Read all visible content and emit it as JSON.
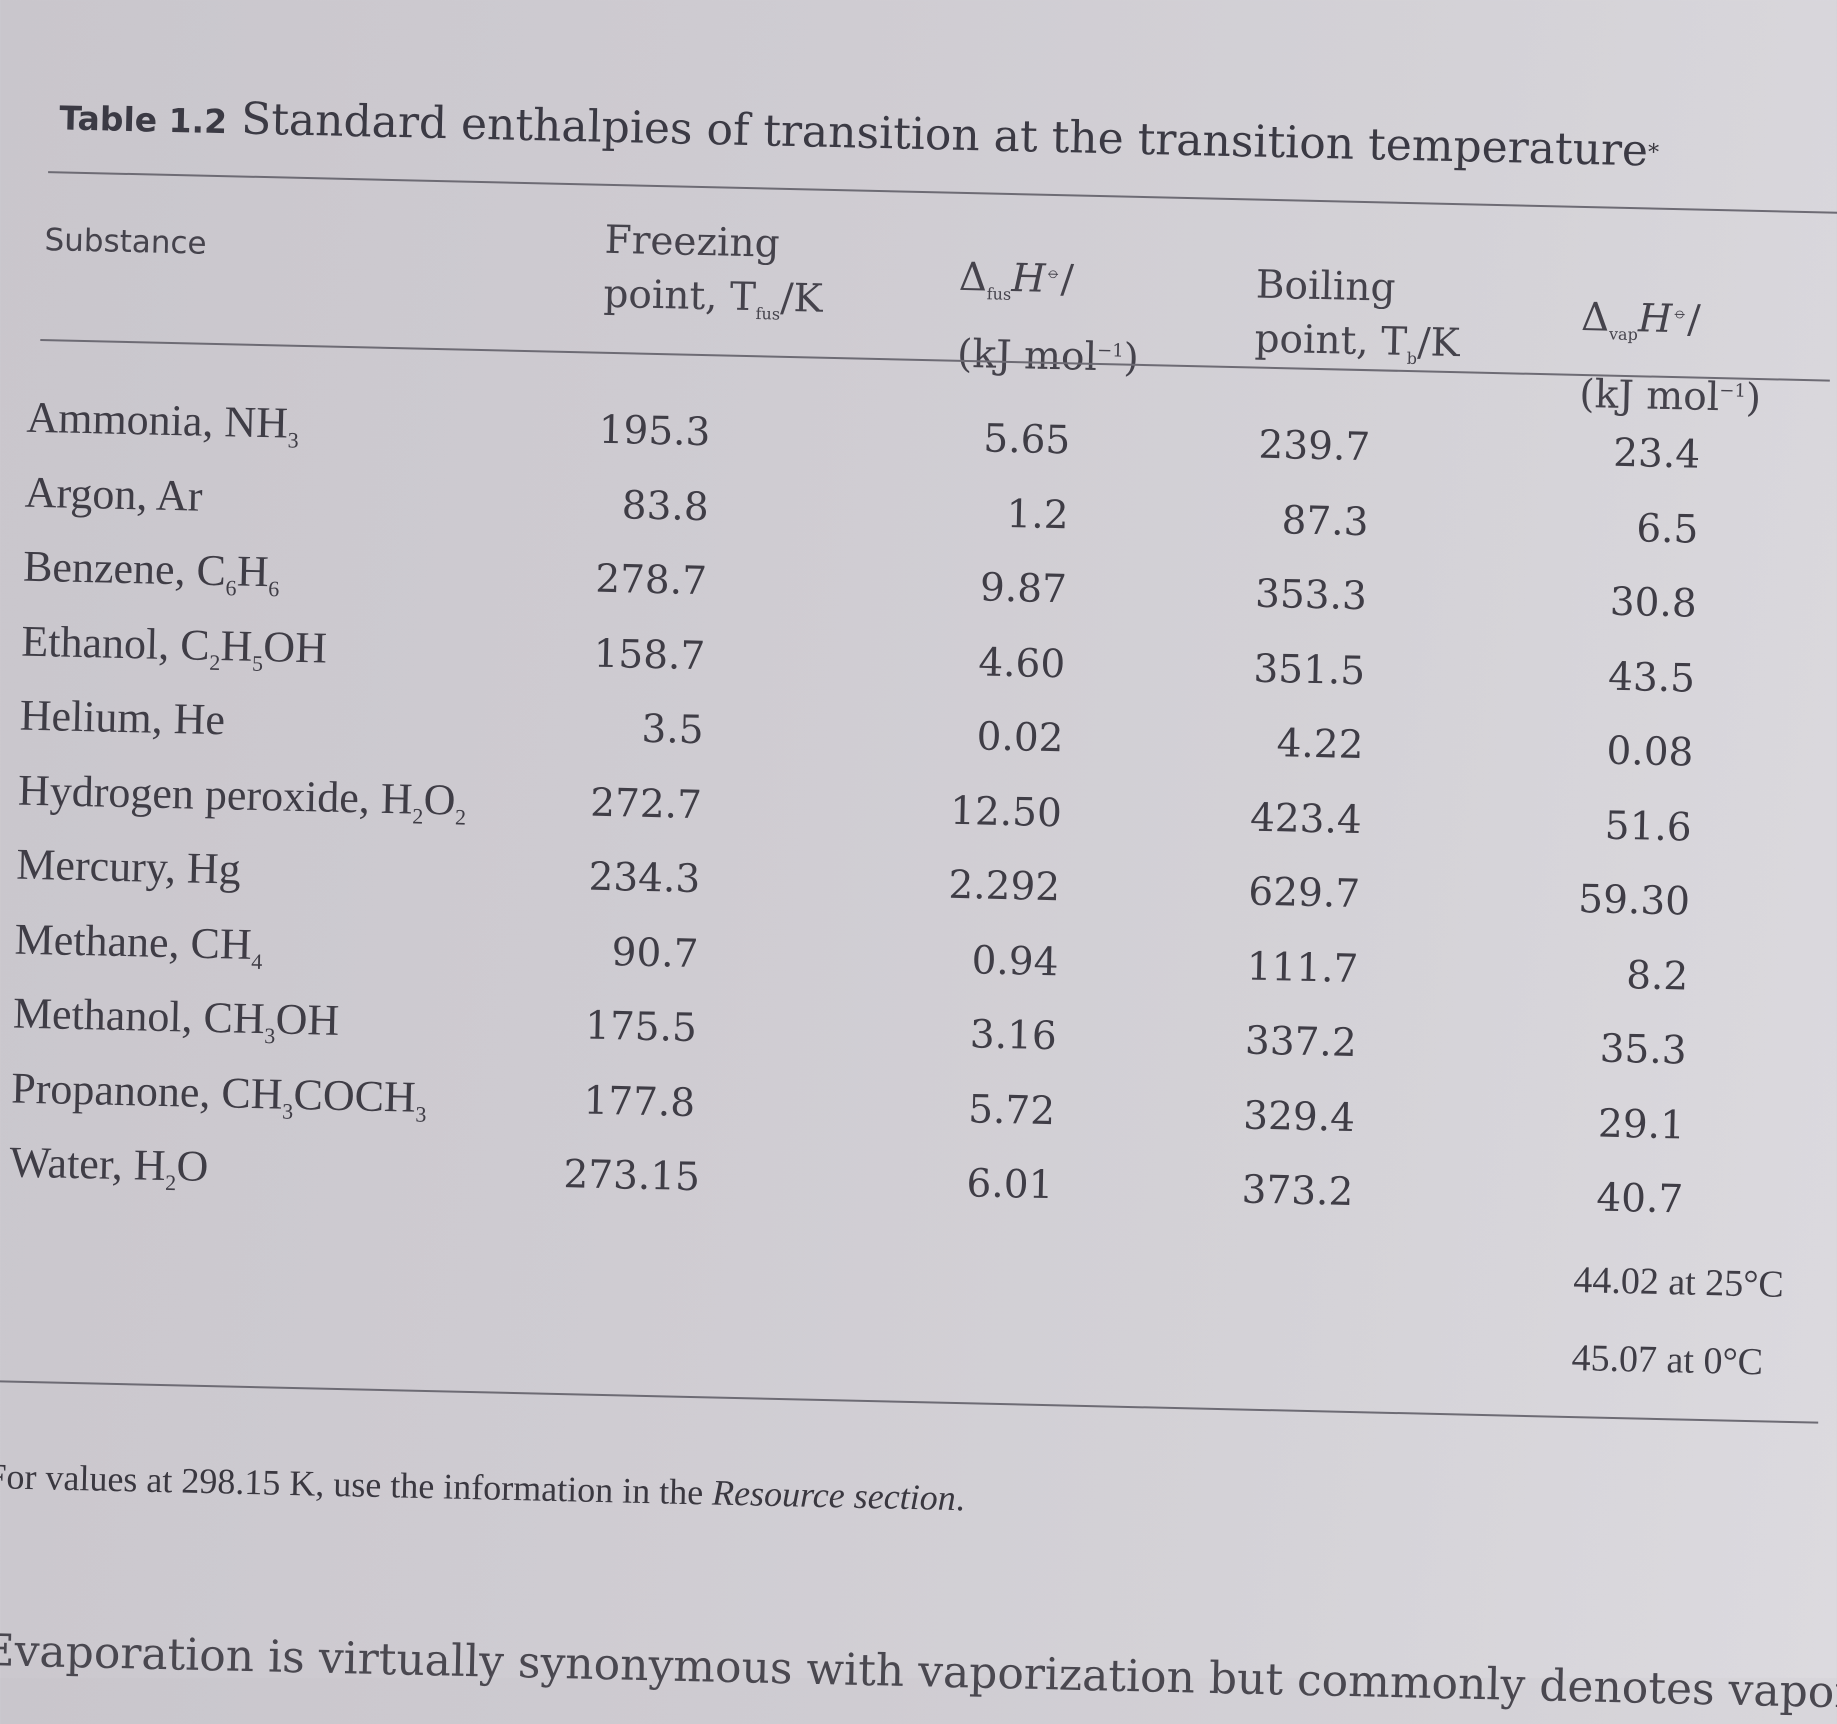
{
  "table": {
    "label": "Table 1.2",
    "caption": "Standard enthalpies of transition at the transition temperature",
    "caption_mark": "*",
    "headers": {
      "substance": "Substance",
      "freezing_l1": "Freezing",
      "freezing_l2a": "point, T",
      "freezing_sub": "fus",
      "freezing_l2b": "/K",
      "fus_h_a": "Δ",
      "fus_h_sub": "fus",
      "fus_h_b": "H",
      "fus_h_sup": "⦵",
      "fus_h_c": "/",
      "fus_h_l2a": "(kJ mol",
      "fus_h_l2sup": "−1",
      "fus_h_l2b": ")",
      "boiling_l1": "Boiling",
      "boiling_l2a": "point, T",
      "boiling_sub": "b",
      "boiling_l2b": "/K",
      "vap_h_a": "Δ",
      "vap_h_sub": "vap",
      "vap_h_b": "H",
      "vap_h_sup": "⦵",
      "vap_h_c": "/",
      "vap_h_l2a": "(kJ mol",
      "vap_h_l2sup": "−1",
      "vap_h_l2b": ")"
    },
    "rows": [
      {
        "name": "Ammonia, NH",
        "sub": "3",
        "tail": "",
        "fp": "195.3",
        "fh": "5.65",
        "bp": "239.7",
        "vh": "23.4"
      },
      {
        "name": "Argon, Ar",
        "sub": "",
        "tail": "",
        "fp": "83.8",
        "fh": "1.2",
        "bp": "87.3",
        "vh": "6.5"
      },
      {
        "name": "Benzene, C",
        "sub": "6",
        "tail": "H",
        "sub2": "6",
        "fp": "278.7",
        "fh": "9.87",
        "bp": "353.3",
        "vh": "30.8"
      },
      {
        "name": "Ethanol, C",
        "sub": "2",
        "tail": "H",
        "sub2": "5",
        "tail2": "OH",
        "fp": "158.7",
        "fh": "4.60",
        "bp": "351.5",
        "vh": "43.5"
      },
      {
        "name": "Helium, He",
        "sub": "",
        "tail": "",
        "fp": "3.5",
        "fh": "0.02",
        "bp": "4.22",
        "vh": "0.08"
      },
      {
        "name": "Hydrogen peroxide, H",
        "sub": "2",
        "tail": "O",
        "sub2": "2",
        "fp": "272.7",
        "fh": "12.50",
        "bp": "423.4",
        "vh": "51.6"
      },
      {
        "name": "Mercury, Hg",
        "sub": "",
        "tail": "",
        "fp": "234.3",
        "fh": "2.292",
        "bp": "629.7",
        "vh": "59.30"
      },
      {
        "name": "Methane, CH",
        "sub": "4",
        "tail": "",
        "fp": "90.7",
        "fh": "0.94",
        "bp": "111.7",
        "vh": "8.2"
      },
      {
        "name": "Methanol, CH",
        "sub": "3",
        "tail": "OH",
        "fp": "175.5",
        "fh": "3.16",
        "bp": "337.2",
        "vh": "35.3"
      },
      {
        "name": "Propanone, CH",
        "sub": "3",
        "tail": "COCH",
        "sub2": "3",
        "fp": "177.8",
        "fh": "5.72",
        "bp": "329.4",
        "vh": "29.1"
      },
      {
        "name": "Water, H",
        "sub": "2",
        "tail": "O",
        "fp": "273.15",
        "fh": "6.01",
        "bp": "373.2",
        "vh": "40.7"
      }
    ],
    "water_extra": [
      "44.02 at 25°C",
      "45.07 at 0°C"
    ],
    "footnote_a": "For values at 298.15 K, use the information in the ",
    "footnote_em": "Resource section",
    "footnote_b": "."
  },
  "body_text": "Evaporation is virtually synonymous with vaporization but commonly denotes vaporization"
}
